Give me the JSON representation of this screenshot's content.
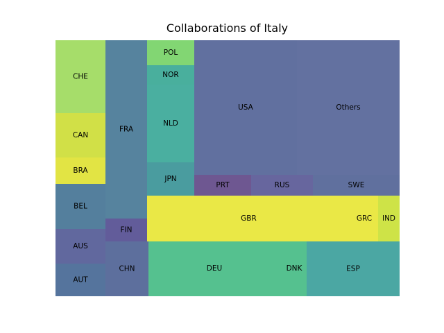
{
  "chart_data": {
    "type": "treemap",
    "title": "Collaborations of Italy",
    "cells": [
      {
        "label": "CHE",
        "color": "#a6dd6a"
      },
      {
        "label": "CAN",
        "color": "#d1e047"
      },
      {
        "label": "BRA",
        "color": "#e2e444"
      },
      {
        "label": "BEL",
        "color": "#547f9d"
      },
      {
        "label": "AUS",
        "color": "#61689e"
      },
      {
        "label": "AUT",
        "color": "#55749d"
      },
      {
        "label": "FRA",
        "color": "#56839e"
      },
      {
        "label": "FIN",
        "color": "#625c9a"
      },
      {
        "label": "CHN",
        "color": "#5d6f9d"
      },
      {
        "label": "POL",
        "color": "#82d673"
      },
      {
        "label": "NOR",
        "color": "#49af9d"
      },
      {
        "label": "NLD",
        "color": "#4aafa0"
      },
      {
        "label": "JPN",
        "color": "#4a9c9f"
      },
      {
        "label": "USA",
        "color": "#61709f"
      },
      {
        "label": "Others",
        "color": "#6371a0"
      },
      {
        "label": "PRT",
        "color": "#6e5791"
      },
      {
        "label": "RUS",
        "color": "#67669e"
      },
      {
        "label": "SWE",
        "color": "#60709e"
      },
      {
        "label": "GBR",
        "color": "#eae846"
      },
      {
        "label": "GRC",
        "color": "#eae846"
      },
      {
        "label": "IND",
        "color": "#cee347"
      },
      {
        "label": "DEU",
        "color": "#55c18f"
      },
      {
        "label": "DNK",
        "color": "#55c18f"
      },
      {
        "label": "ESP",
        "color": "#4ba7a3"
      }
    ]
  }
}
